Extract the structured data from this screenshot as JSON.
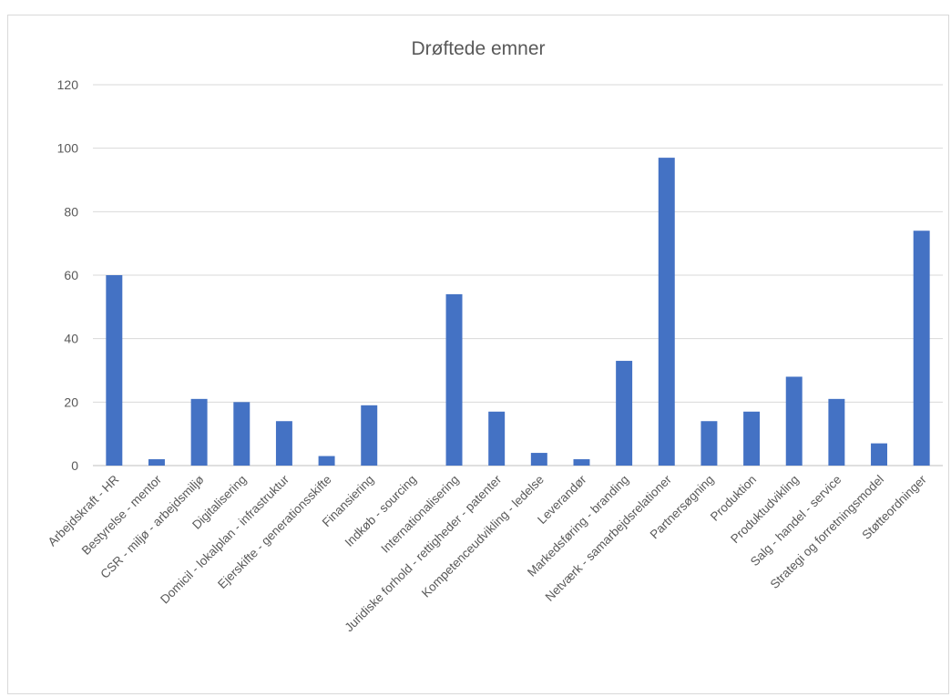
{
  "chart_data": {
    "type": "bar",
    "title": "Drøftede emner",
    "xlabel": "",
    "ylabel": "",
    "ylim": [
      0,
      120
    ],
    "yticks": [
      0,
      20,
      40,
      60,
      80,
      100,
      120
    ],
    "grid": true,
    "legend": "none",
    "bar_color": "#4472c4",
    "categories": [
      "Arbejdskraft - HR",
      "Bestyrelse - mentor",
      "CSR - miljø - arbejdsmiljø",
      "Digitalisering",
      "Domicil - lokalplan - infrastruktur",
      "Ejerskifte - generationsskifte",
      "Finansiering",
      "Indkøb - sourcing",
      "Internationalisering",
      "Juridiske forhold - rettigheder - patenter",
      "Kompetenceudvikling - ledelse",
      "Leverandør",
      "Markedsføring - branding",
      "Netværk - samarbejdsrelationer",
      "Partnersøgning",
      "Produktion",
      "Produktudvikling",
      "Salg - handel - service",
      "Strategi og forretningsmodel",
      "Støtteordninger"
    ],
    "values": [
      60,
      2,
      21,
      20,
      14,
      3,
      19,
      0,
      54,
      17,
      4,
      2,
      33,
      97,
      14,
      17,
      28,
      21,
      7,
      74
    ]
  }
}
